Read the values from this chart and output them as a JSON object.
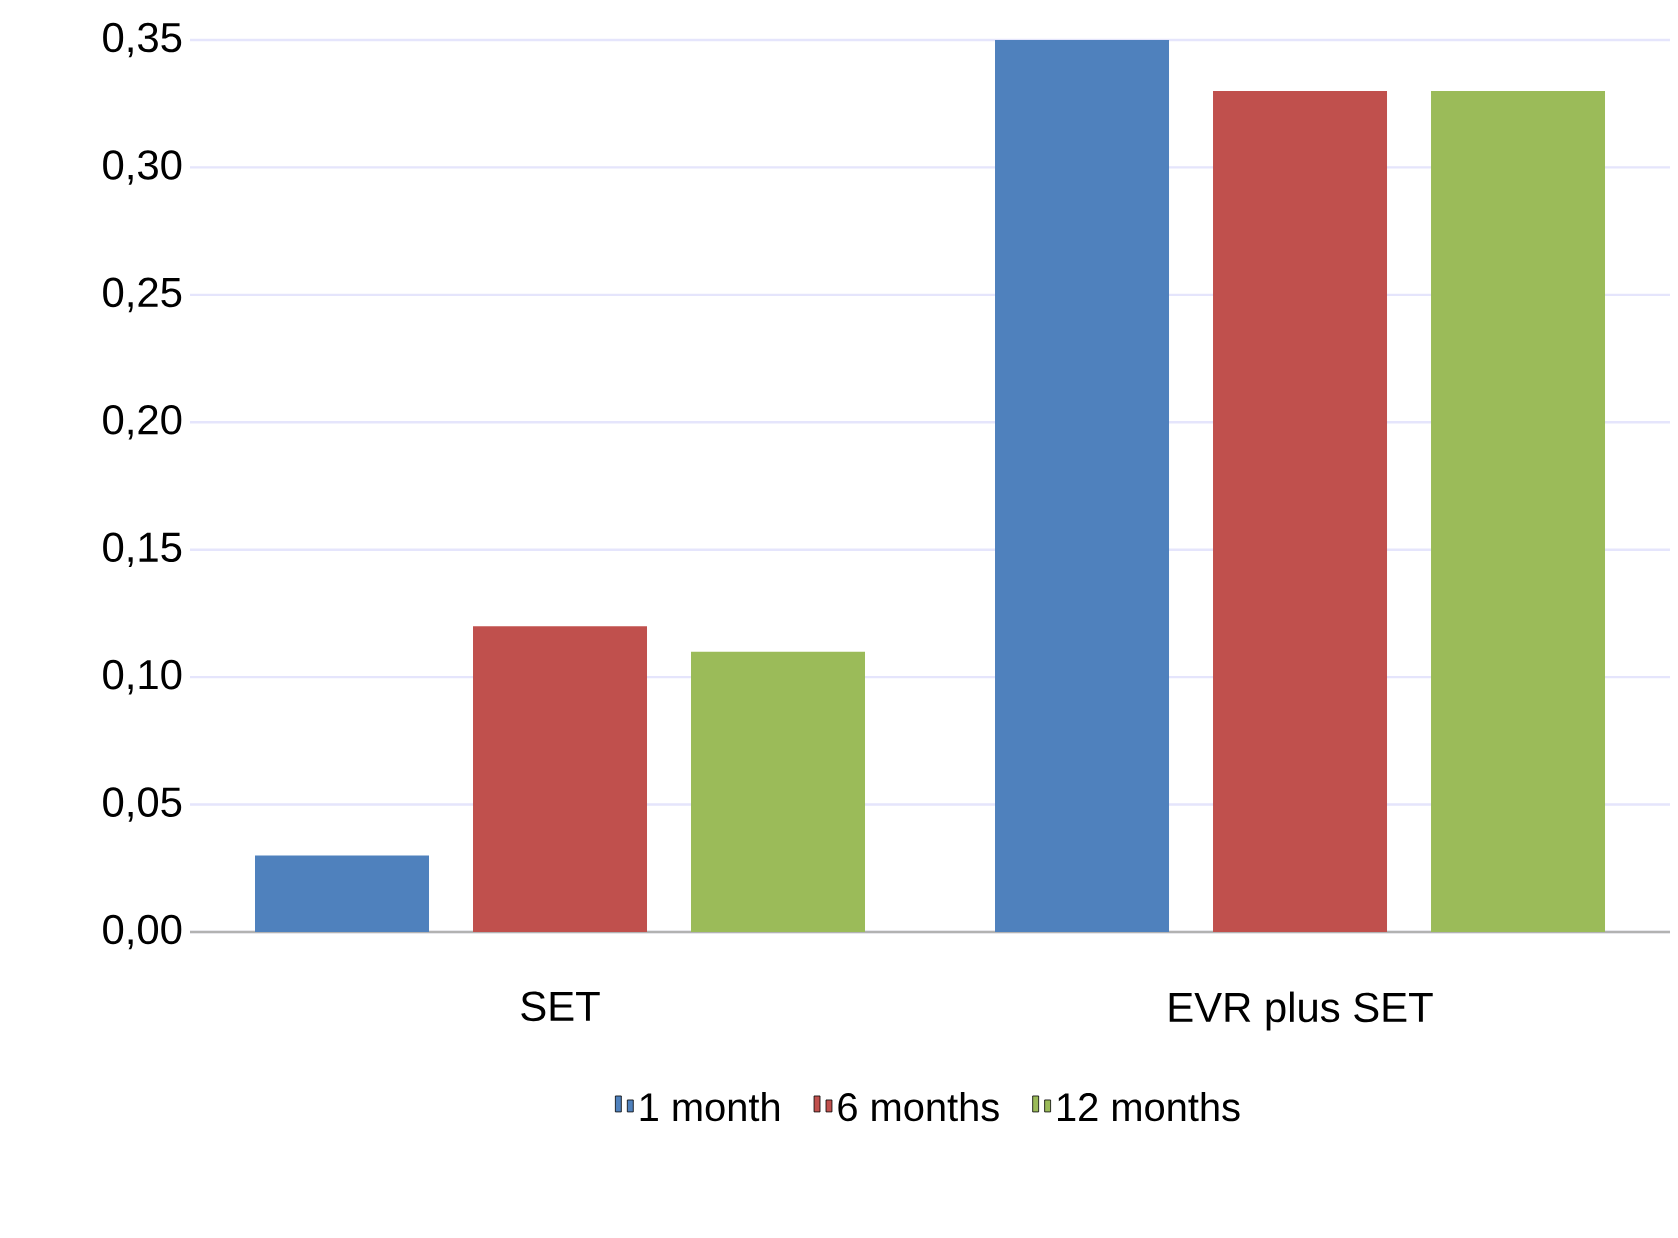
{
  "chart_data": {
    "type": "bar",
    "categories": [
      "SET",
      "EVR plus SET"
    ],
    "series": [
      {
        "name": "1 month",
        "color": "#4f81bd",
        "values": [
          0.03,
          0.35
        ]
      },
      {
        "name": "6 months",
        "color": "#c0504d",
        "values": [
          0.12,
          0.33
        ]
      },
      {
        "name": "12 months",
        "color": "#9bbb59",
        "values": [
          0.11,
          0.33
        ]
      }
    ],
    "ylim": [
      0,
      0.35
    ],
    "yticks": [
      {
        "value": 0,
        "label": "0,00"
      },
      {
        "value": 0.05,
        "label": "0,05"
      },
      {
        "value": 0.1,
        "label": "0,10"
      },
      {
        "value": 0.15,
        "label": "0,15"
      },
      {
        "value": 0.2,
        "label": "0,20"
      },
      {
        "value": 0.25,
        "label": "0,25"
      },
      {
        "value": 0.3,
        "label": "0,30"
      },
      {
        "value": 0.35,
        "label": "0,35"
      }
    ],
    "grid": "y",
    "legend": "bottom"
  }
}
